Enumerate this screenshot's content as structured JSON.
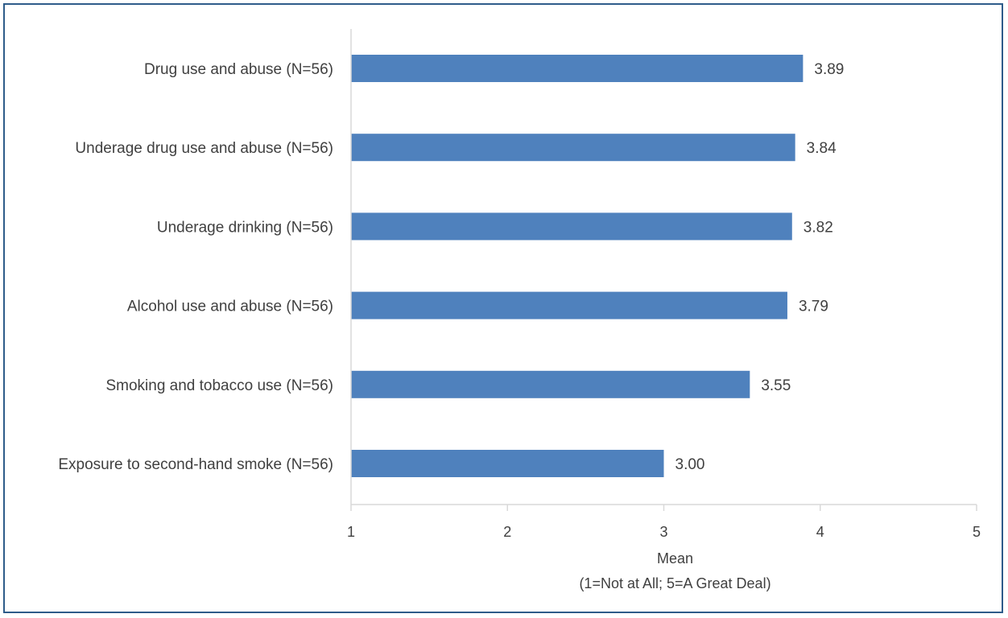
{
  "chart_data": {
    "type": "bar",
    "orientation": "horizontal",
    "categories": [
      "Drug use and abuse (N=56)",
      "Underage drug use and abuse (N=56)",
      "Underage drinking (N=56)",
      "Alcohol use and abuse (N=56)",
      "Smoking and tobacco use (N=56)",
      "Exposure to second-hand smoke (N=56)"
    ],
    "values": [
      3.89,
      3.84,
      3.82,
      3.79,
      3.55,
      3.0
    ],
    "value_labels": [
      "3.89",
      "3.84",
      "3.82",
      "3.79",
      "3.55",
      "3.00"
    ],
    "xlim": [
      1,
      5
    ],
    "xticks": [
      1,
      2,
      3,
      4,
      5
    ],
    "xtick_labels": [
      "1",
      "2",
      "3",
      "4",
      "5"
    ],
    "xlabel": "Mean",
    "xlabel_line2": "(1=Not at All; 5=A Great Deal)",
    "bar_color": "#4f81bd",
    "axis_color": "#d9d9d9",
    "grid": false
  }
}
